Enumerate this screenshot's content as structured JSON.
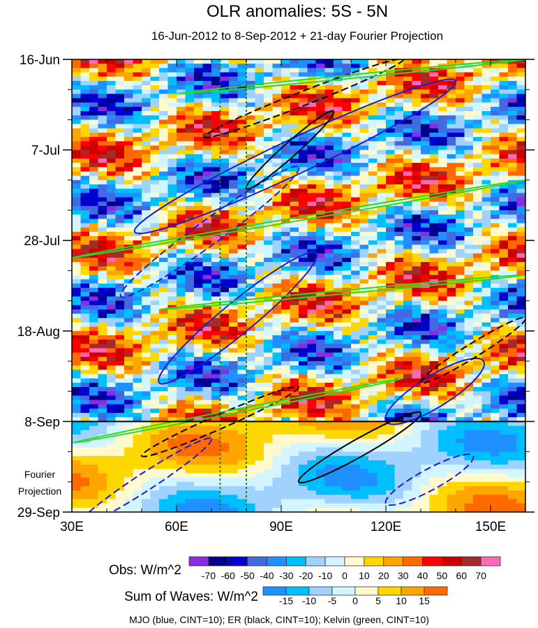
{
  "chart_data": {
    "type": "heatmap",
    "title": "OLR anomalies: 5S - 5N",
    "subtitle": "16-Jun-2012 to 8-Sep-2012 + 21-day Fourier Projection",
    "xlim": [
      30,
      160
    ],
    "x_ticks": [
      30,
      60,
      90,
      120,
      150
    ],
    "x_tick_labels": [
      "30E",
      "60E",
      "90E",
      "120E",
      "150E"
    ],
    "y_range_days": [
      0,
      105
    ],
    "y_ticks_days": [
      0,
      21,
      42,
      63,
      84,
      105
    ],
    "y_tick_labels": [
      "16-Jun",
      "7-Jul",
      "28-Jul",
      "18-Aug",
      "8-Sep",
      "29-Sep"
    ],
    "obs_end_day": 84,
    "projection_label": [
      "Fourier",
      "Projection"
    ],
    "reference_lines_lon": [
      72.5,
      80
    ],
    "obs_colorbar": {
      "label": "Obs: W/m^2",
      "levels": [
        -70,
        -60,
        -50,
        -40,
        -30,
        -20,
        -10,
        0,
        10,
        20,
        30,
        40,
        50,
        60,
        70
      ],
      "colors": [
        "#8a2be2",
        "#00008b",
        "#0000cd",
        "#4169e1",
        "#1e90ff",
        "#00bfff",
        "#a0d2ff",
        "#d2f5ff",
        "#fffacd",
        "#ffd700",
        "#ffa500",
        "#ff6a00",
        "#ff0000",
        "#cd0000",
        "#a52a2a",
        "#ff69b4"
      ]
    },
    "waves_colorbar": {
      "label": "Sum of Waves: W/m^2",
      "levels": [
        -15,
        -10,
        -5,
        0,
        5,
        10,
        15
      ],
      "colors": [
        "#1e90ff",
        "#00bfff",
        "#a0d2ff",
        "#d2f5ff",
        "#fffacd",
        "#ffd700",
        "#ffa500",
        "#ff6a00"
      ]
    },
    "footer": "MJO (blue, CINT=10); ER (black, CINT=10); Kelvin (green, CINT=10)",
    "contours": [
      {
        "wave": "MJO",
        "color": "#1a1adc",
        "dashed": false,
        "lon": [
          48,
          140
        ],
        "day": [
          5,
          40
        ],
        "width_deg": 10
      },
      {
        "wave": "MJO",
        "color": "#1a1adc",
        "dashed": false,
        "lon": [
          55,
          100
        ],
        "day": [
          45,
          75
        ],
        "width_deg": 9
      },
      {
        "wave": "MJO",
        "color": "#1a1adc",
        "dashed": false,
        "lon": [
          120,
          148
        ],
        "day": [
          70,
          84
        ],
        "width_deg": 9
      },
      {
        "wave": "MJO",
        "color": "#1a1adc",
        "dashed": true,
        "lon": [
          44,
          95
        ],
        "day": [
          25,
          55
        ],
        "width_deg": 7
      },
      {
        "wave": "MJO",
        "color": "#1a1adc",
        "dashed": true,
        "lon": [
          120,
          145
        ],
        "day": [
          92,
          103
        ],
        "width_deg": 6
      },
      {
        "wave": "MJO",
        "color": "#1a1adc",
        "dashed": true,
        "lon": [
          32,
          70
        ],
        "day": [
          88,
          108
        ],
        "width_deg": 5
      },
      {
        "wave": "ER",
        "color": "#000000",
        "dashed": false,
        "lon": [
          80,
          105
        ],
        "day": [
          12,
          30
        ],
        "width_deg": 4
      },
      {
        "wave": "ER",
        "color": "#000000",
        "dashed": true,
        "lon": [
          68,
          125
        ],
        "day": [
          0,
          18
        ],
        "width_deg": 4
      },
      {
        "wave": "ER",
        "color": "#000000",
        "dashed": false,
        "lon": [
          95,
          130
        ],
        "day": [
          82,
          98
        ],
        "width_deg": 5
      },
      {
        "wave": "ER",
        "color": "#000000",
        "dashed": true,
        "lon": [
          50,
          95
        ],
        "day": [
          76,
          92
        ],
        "width_deg": 4
      },
      {
        "wave": "ER",
        "color": "#000000",
        "dashed": true,
        "lon": [
          130,
          160
        ],
        "day": [
          60,
          75
        ],
        "width_deg": 4
      },
      {
        "wave": "Kelvin",
        "color": "#22dd22",
        "dashed": false,
        "lon": [
          30,
          160
        ],
        "day": [
          28,
          46
        ],
        "width_deg": 1
      },
      {
        "wave": "Kelvin",
        "color": "#22dd22",
        "dashed": false,
        "lon": [
          55,
          160
        ],
        "day": [
          50,
          58
        ],
        "width_deg": 1
      },
      {
        "wave": "Kelvin",
        "color": "#22dd22",
        "dashed": false,
        "lon": [
          30,
          125
        ],
        "day": [
          74,
          89
        ],
        "width_deg": 1
      },
      {
        "wave": "Kelvin",
        "color": "#22dd22",
        "dashed": false,
        "lon": [
          60,
          160
        ],
        "day": [
          0,
          8
        ],
        "width_deg": 1
      }
    ]
  }
}
